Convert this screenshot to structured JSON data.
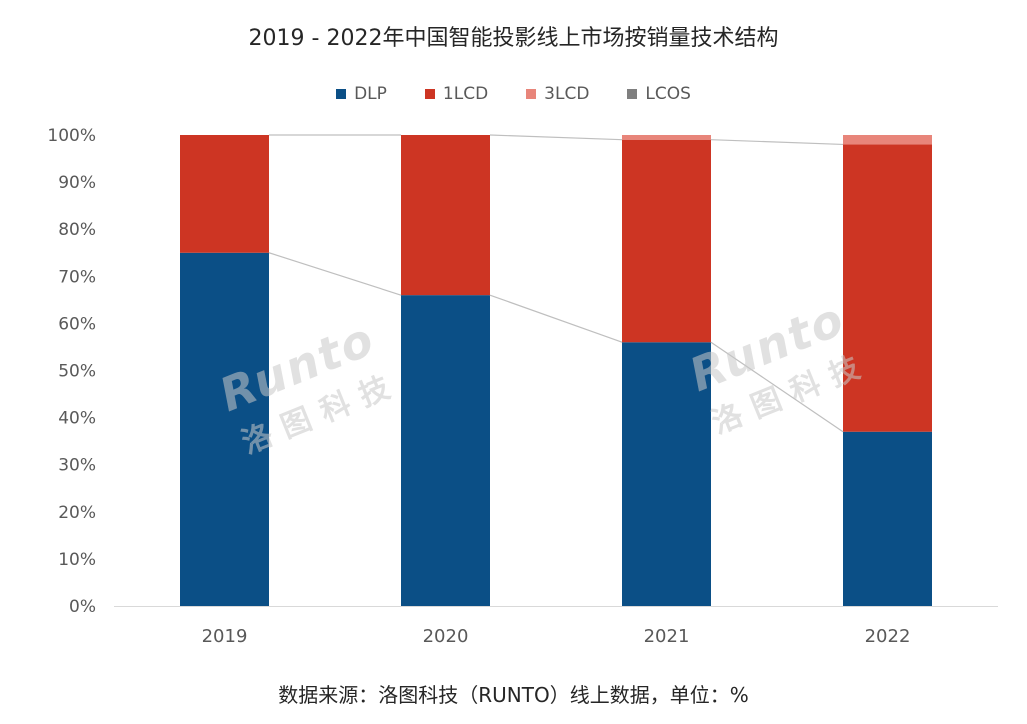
{
  "chart_data": {
    "type": "bar",
    "stacked": true,
    "title": "2019 - 2022年中国智能投影线上市场按销量技术结构",
    "categories": [
      "2019",
      "2020",
      "2021",
      "2022"
    ],
    "series": [
      {
        "name": "DLP",
        "color": "#0b4f86",
        "values": [
          75,
          66,
          56,
          37
        ]
      },
      {
        "name": "1LCD",
        "color": "#cd3523",
        "values": [
          25,
          34,
          43,
          61
        ]
      },
      {
        "name": "3LCD",
        "color": "#e8857a",
        "values": [
          0,
          0,
          1,
          2
        ]
      },
      {
        "name": "LCOS",
        "color": "#7f7f7f",
        "values": [
          0,
          0,
          0,
          0
        ]
      }
    ],
    "ylim": [
      0,
      100
    ],
    "yticks": [
      "0%",
      "10%",
      "20%",
      "30%",
      "40%",
      "50%",
      "60%",
      "70%",
      "80%",
      "90%",
      "100%"
    ],
    "connector_lines": true,
    "legend_position": "top-center",
    "grid": false
  },
  "watermark": {
    "brand": "Runto",
    "cn": "洛图科技"
  },
  "source": "数据来源：洛图科技（RUNTO）线上数据，单位：%"
}
